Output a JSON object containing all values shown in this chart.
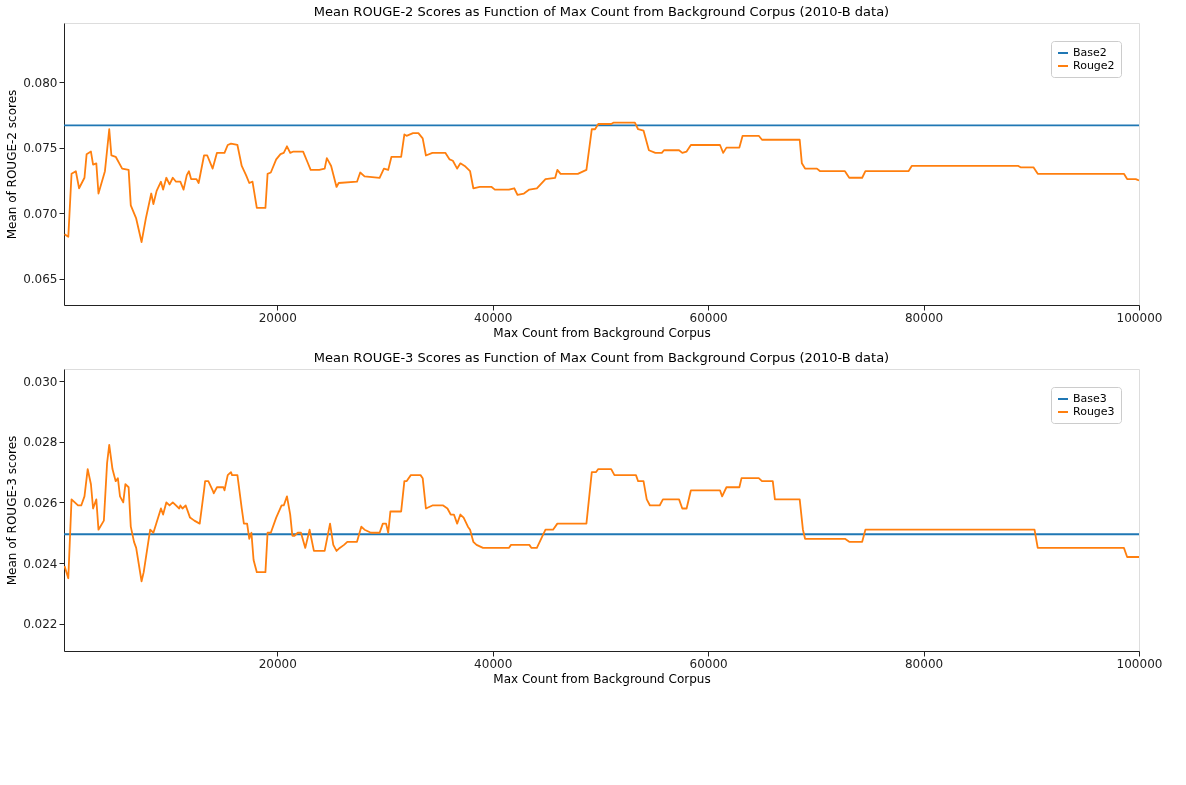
{
  "chart_data": [
    {
      "type": "line",
      "title": "Mean ROUGE-2 Scores as Function of Max Count from Background Corpus (2010-B data)",
      "xlabel": "Max Count from Background Corpus",
      "ylabel": "Mean of ROUGE-2 scores",
      "legend": "top right",
      "grid": false,
      "xlim": [
        200,
        100000
      ],
      "xticks": [
        20000,
        40000,
        60000,
        80000,
        100000
      ],
      "ylim": [
        0.063,
        0.0845
      ],
      "yticks": [
        {
          "value": 0.065,
          "label": "0.065"
        },
        {
          "value": 0.07,
          "label": "0.070"
        },
        {
          "value": 0.075,
          "label": "0.075"
        },
        {
          "value": 0.08,
          "label": "0.080"
        }
      ],
      "series": [
        {
          "name": "Base2",
          "color": "#1f77b4",
          "x": [
            200,
            100000
          ],
          "values": [
            0.0767,
            0.0767
          ]
        },
        {
          "name": "Rouge2",
          "color": "#ff7f0e",
          "x": [
            250,
            600,
            900,
            1300,
            1600,
            2100,
            2300,
            2700,
            2900,
            3200,
            3400,
            4000,
            4400,
            4600,
            5000,
            5600,
            6200,
            6400,
            6900,
            7400,
            7800,
            8300,
            8500,
            8800,
            9200,
            9400,
            9700,
            10000,
            10300,
            10600,
            11000,
            11300,
            11600,
            11800,
            12000,
            12500,
            12700,
            13200,
            13500,
            14000,
            14400,
            15100,
            15400,
            15700,
            16300,
            16700,
            17100,
            17400,
            17700,
            18100,
            18900,
            19100,
            19400,
            19900,
            20300,
            20600,
            20900,
            21200,
            21500,
            22400,
            22800,
            23100,
            23900,
            24400,
            24600,
            25000,
            25500,
            25700,
            27400,
            27700,
            28100,
            29500,
            29900,
            30300,
            30600,
            31500,
            31800,
            32000,
            32600,
            33100,
            33500,
            33800,
            34400,
            35600,
            36000,
            36300,
            36700,
            37000,
            37400,
            37900,
            38200,
            38800,
            39200,
            39900,
            40200,
            41500,
            42000,
            42300,
            42900,
            43400,
            44100,
            44900,
            45800,
            46000,
            46300,
            47900,
            48700,
            49200,
            49500,
            49800,
            51000,
            51200,
            53200,
            53500,
            54000,
            54500,
            55100,
            55700,
            55900,
            57300,
            57600,
            58000,
            58400,
            61100,
            61400,
            61700,
            62900,
            63200,
            64700,
            65000,
            67200,
            68500,
            68700,
            69000,
            70100,
            70400,
            72700,
            73100,
            74300,
            74600,
            78600,
            78900,
            88800,
            89000,
            90200,
            90600,
            98600,
            98900,
            99700,
            100000
          ],
          "values": [
            0.0684,
            0.0682,
            0.073,
            0.0732,
            0.0719,
            0.0727,
            0.0745,
            0.0747,
            0.0737,
            0.0738,
            0.0715,
            0.0732,
            0.0764,
            0.0744,
            0.0743,
            0.0734,
            0.0733,
            0.0706,
            0.0696,
            0.0678,
            0.0696,
            0.0715,
            0.0707,
            0.0717,
            0.0724,
            0.0718,
            0.0727,
            0.0722,
            0.0727,
            0.0724,
            0.0724,
            0.0718,
            0.0729,
            0.0732,
            0.0726,
            0.0726,
            0.0723,
            0.0744,
            0.0744,
            0.0734,
            0.0746,
            0.0746,
            0.0752,
            0.0753,
            0.0752,
            0.0736,
            0.0729,
            0.0723,
            0.0724,
            0.0704,
            0.0704,
            0.073,
            0.0731,
            0.0741,
            0.0745,
            0.0746,
            0.0751,
            0.0746,
            0.0747,
            0.0747,
            0.0739,
            0.0733,
            0.0733,
            0.0734,
            0.0742,
            0.0736,
            0.072,
            0.0723,
            0.0724,
            0.0731,
            0.0728,
            0.0727,
            0.0734,
            0.0733,
            0.0743,
            0.0743,
            0.076,
            0.0759,
            0.0761,
            0.0761,
            0.0757,
            0.0744,
            0.0746,
            0.0746,
            0.0741,
            0.074,
            0.0734,
            0.0738,
            0.0736,
            0.0732,
            0.0719,
            0.072,
            0.072,
            0.072,
            0.0718,
            0.0718,
            0.0719,
            0.0714,
            0.0715,
            0.0718,
            0.0719,
            0.0726,
            0.0727,
            0.0733,
            0.073,
            0.073,
            0.0733,
            0.0764,
            0.0764,
            0.0768,
            0.0768,
            0.0769,
            0.0769,
            0.0764,
            0.0763,
            0.0748,
            0.0746,
            0.0746,
            0.0748,
            0.0748,
            0.0746,
            0.0747,
            0.0752,
            0.0752,
            0.0746,
            0.075,
            0.075,
            0.0759,
            0.0759,
            0.0756,
            0.0756,
            0.0756,
            0.0738,
            0.0734,
            0.0734,
            0.0732,
            0.0732,
            0.0727,
            0.0727,
            0.0732,
            0.0732,
            0.0736,
            0.0736,
            0.0735,
            0.0735,
            0.073,
            0.073,
            0.0726,
            0.0726,
            0.0725
          ]
        }
      ]
    },
    {
      "type": "line",
      "title": "Mean ROUGE-3 Scores as Function of Max Count from Background Corpus (2010-B data)",
      "xlabel": "Max Count from Background Corpus",
      "ylabel": "Mean of ROUGE-3 scores",
      "legend": "top right",
      "grid": false,
      "xlim": [
        200,
        100000
      ],
      "xticks": [
        20000,
        40000,
        60000,
        80000,
        100000
      ],
      "ylim": [
        0.0211,
        0.0304
      ],
      "yticks": [
        {
          "value": 0.022,
          "label": "0.022"
        },
        {
          "value": 0.024,
          "label": "0.024"
        },
        {
          "value": 0.026,
          "label": "0.026"
        },
        {
          "value": 0.028,
          "label": "0.028"
        },
        {
          "value": 0.03,
          "label": "0.030"
        }
      ],
      "series": [
        {
          "name": "Base3",
          "color": "#1f77b4",
          "x": [
            200,
            100000
          ],
          "values": [
            0.02495,
            0.02495
          ]
        },
        {
          "name": "Rouge3",
          "color": "#ff7f0e",
          "x": [
            250,
            600,
            900,
            1200,
            1500,
            1800,
            2100,
            2400,
            2700,
            2900,
            3200,
            3400,
            3900,
            4200,
            4400,
            4700,
            5000,
            5200,
            5400,
            5700,
            5900,
            6200,
            6400,
            6700,
            6900,
            7400,
            7600,
            8200,
            8500,
            9200,
            9400,
            9700,
            10000,
            10300,
            10900,
            11000,
            11200,
            11500,
            11900,
            12300,
            12800,
            13200,
            13300,
            13600,
            14000,
            14100,
            14400,
            15000,
            15100,
            15400,
            15700,
            15800,
            16300,
            16700,
            16900,
            17200,
            17400,
            17600,
            17800,
            18100,
            18900,
            19100,
            19400,
            19900,
            20400,
            20600,
            20900,
            21200,
            21400,
            21600,
            21900,
            22200,
            22600,
            23000,
            23400,
            23900,
            24400,
            24900,
            25200,
            25500,
            25800,
            26200,
            26500,
            27400,
            27800,
            28100,
            28700,
            29500,
            29800,
            30100,
            30300,
            30500,
            31500,
            31800,
            32000,
            32400,
            32900,
            33300,
            33500,
            33800,
            34400,
            35400,
            35800,
            36100,
            36400,
            36700,
            37000,
            37300,
            37700,
            37900,
            38200,
            38500,
            39100,
            41500,
            41700,
            43400,
            43600,
            44100,
            44900,
            45600,
            46000,
            46300,
            47900,
            48700,
            49200,
            49600,
            49800,
            51000,
            51300,
            53300,
            53500,
            54000,
            54300,
            54600,
            55500,
            55800,
            57300,
            57600,
            58000,
            58400,
            61100,
            61300,
            61700,
            62900,
            63100,
            63700,
            64700,
            65000,
            66000,
            66200,
            68500,
            68800,
            69000,
            72700,
            73100,
            74300,
            74600,
            78600,
            88800,
            90300,
            90600,
            98600,
            98900,
            100000
          ],
          "values": [
            0.0239,
            0.0235,
            0.0261,
            0.026,
            0.0259,
            0.0259,
            0.0262,
            0.0271,
            0.0266,
            0.0258,
            0.0261,
            0.0251,
            0.0254,
            0.0273,
            0.0279,
            0.0271,
            0.0267,
            0.0268,
            0.0262,
            0.026,
            0.0266,
            0.0265,
            0.0252,
            0.0247,
            0.0245,
            0.0234,
            0.0237,
            0.0251,
            0.025,
            0.0258,
            0.0256,
            0.026,
            0.0259,
            0.026,
            0.0258,
            0.0259,
            0.0258,
            0.0259,
            0.0255,
            0.0254,
            0.0253,
            0.0264,
            0.0267,
            0.0267,
            0.0264,
            0.0263,
            0.0265,
            0.0265,
            0.0264,
            0.0269,
            0.027,
            0.0269,
            0.0269,
            0.0258,
            0.0253,
            0.0253,
            0.0248,
            0.025,
            0.0241,
            0.0237,
            0.0237,
            0.025,
            0.025,
            0.0255,
            0.0259,
            0.0259,
            0.0262,
            0.0256,
            0.0249,
            0.0249,
            0.025,
            0.025,
            0.0245,
            0.0251,
            0.0244,
            0.0244,
            0.0244,
            0.0253,
            0.0246,
            0.0244,
            0.0245,
            0.0246,
            0.0247,
            0.0247,
            0.0252,
            0.0251,
            0.025,
            0.025,
            0.0253,
            0.0253,
            0.025,
            0.0257,
            0.0257,
            0.0267,
            0.0267,
            0.0269,
            0.0269,
            0.0269,
            0.0268,
            0.0258,
            0.0259,
            0.0259,
            0.0258,
            0.0256,
            0.0256,
            0.0253,
            0.0256,
            0.0255,
            0.0252,
            0.0251,
            0.0247,
            0.0246,
            0.0245,
            0.0245,
            0.0246,
            0.0246,
            0.0245,
            0.0245,
            0.0251,
            0.0251,
            0.0253,
            0.0253,
            0.0253,
            0.0253,
            0.027,
            0.027,
            0.0271,
            0.0271,
            0.0269,
            0.0269,
            0.0267,
            0.0267,
            0.0261,
            0.0259,
            0.0259,
            0.0261,
            0.0261,
            0.0258,
            0.0258,
            0.0264,
            0.0264,
            0.0262,
            0.0265,
            0.0265,
            0.0268,
            0.0268,
            0.0268,
            0.0267,
            0.0267,
            0.0261,
            0.0261,
            0.0251,
            0.0248,
            0.0248,
            0.0247,
            0.0247,
            0.0251,
            0.0251,
            0.0251,
            0.0251,
            0.0245,
            0.0245,
            0.0242,
            0.0242
          ]
        }
      ]
    }
  ]
}
